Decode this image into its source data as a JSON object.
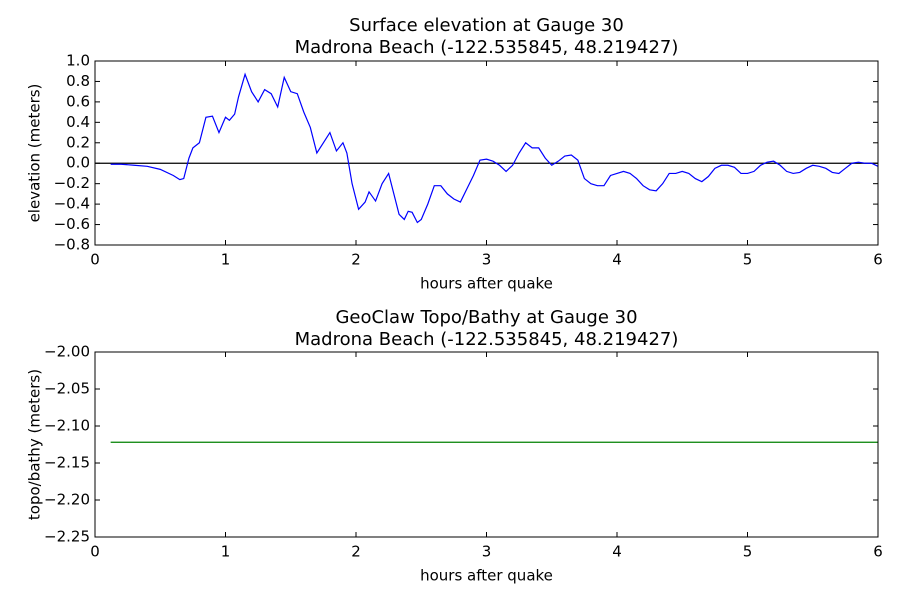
{
  "chart_data": [
    {
      "type": "line",
      "title": "Surface elevation at Gauge 30",
      "subtitle": "Madrona Beach  (-122.535845, 48.219427)",
      "xlabel": "hours after quake",
      "ylabel": "elevation (meters)",
      "xlim": [
        0,
        6
      ],
      "ylim": [
        -0.8,
        1.0
      ],
      "xticks": [
        0,
        1,
        2,
        3,
        4,
        5,
        6
      ],
      "yticks": [
        {
          "value": -0.8,
          "label": "−0.8"
        },
        {
          "value": -0.6,
          "label": "−0.6"
        },
        {
          "value": -0.4,
          "label": "−0.4"
        },
        {
          "value": -0.2,
          "label": "−0.2"
        },
        {
          "value": 0,
          "label": "0.0"
        },
        {
          "value": 0.2,
          "label": "0.2"
        },
        {
          "value": 0.4,
          "label": "0.4"
        },
        {
          "value": 0.6,
          "label": "0.6"
        },
        {
          "value": 0.8,
          "label": "0.8"
        },
        {
          "value": 1,
          "label": "1.0"
        }
      ],
      "hline": 0,
      "hline_color": "#000000",
      "x": [
        0.12,
        0.2,
        0.3,
        0.4,
        0.5,
        0.6,
        0.65,
        0.68,
        0.72,
        0.75,
        0.8,
        0.85,
        0.9,
        0.95,
        1.0,
        1.03,
        1.07,
        1.1,
        1.15,
        1.2,
        1.25,
        1.3,
        1.35,
        1.4,
        1.45,
        1.5,
        1.55,
        1.6,
        1.65,
        1.7,
        1.75,
        1.8,
        1.85,
        1.9,
        1.93,
        1.97,
        2.02,
        2.07,
        2.1,
        2.15,
        2.2,
        2.25,
        2.3,
        2.33,
        2.37,
        2.4,
        2.43,
        2.47,
        2.5,
        2.55,
        2.6,
        2.65,
        2.7,
        2.75,
        2.8,
        2.85,
        2.9,
        2.95,
        3.0,
        3.05,
        3.1,
        3.15,
        3.2,
        3.25,
        3.3,
        3.35,
        3.4,
        3.45,
        3.5,
        3.55,
        3.6,
        3.65,
        3.7,
        3.75,
        3.8,
        3.85,
        3.9,
        3.95,
        4.0,
        4.05,
        4.1,
        4.15,
        4.2,
        4.25,
        4.3,
        4.35,
        4.4,
        4.45,
        4.5,
        4.55,
        4.6,
        4.65,
        4.7,
        4.75,
        4.8,
        4.85,
        4.9,
        4.95,
        5.0,
        5.05,
        5.1,
        5.15,
        5.2,
        5.25,
        5.3,
        5.35,
        5.4,
        5.45,
        5.5,
        5.55,
        5.6,
        5.65,
        5.7,
        5.75,
        5.8,
        5.85,
        5.9,
        5.95,
        6.0
      ],
      "series": [
        {
          "color": "#0000ff",
          "values": [
            -0.01,
            -0.01,
            -0.02,
            -0.03,
            -0.06,
            -0.12,
            -0.16,
            -0.15,
            0.05,
            0.15,
            0.2,
            0.45,
            0.46,
            0.3,
            0.45,
            0.42,
            0.48,
            0.65,
            0.87,
            0.7,
            0.6,
            0.72,
            0.68,
            0.55,
            0.84,
            0.7,
            0.68,
            0.5,
            0.35,
            0.1,
            0.2,
            0.3,
            0.12,
            0.2,
            0.1,
            -0.2,
            -0.45,
            -0.38,
            -0.28,
            -0.37,
            -0.2,
            -0.1,
            -0.35,
            -0.5,
            -0.55,
            -0.47,
            -0.48,
            -0.58,
            -0.55,
            -0.4,
            -0.22,
            -0.22,
            -0.3,
            -0.35,
            -0.38,
            -0.25,
            -0.12,
            0.03,
            0.04,
            0.02,
            -0.02,
            -0.08,
            -0.02,
            0.1,
            0.2,
            0.15,
            0.15,
            0.05,
            -0.02,
            0.02,
            0.07,
            0.08,
            0.03,
            -0.15,
            -0.2,
            -0.22,
            -0.22,
            -0.12,
            -0.1,
            -0.08,
            -0.1,
            -0.15,
            -0.22,
            -0.26,
            -0.27,
            -0.2,
            -0.1,
            -0.1,
            -0.08,
            -0.1,
            -0.15,
            -0.18,
            -0.13,
            -0.05,
            -0.02,
            -0.02,
            -0.04,
            -0.1,
            -0.1,
            -0.08,
            -0.02,
            0.01,
            0.02,
            -0.02,
            -0.08,
            -0.1,
            -0.09,
            -0.05,
            -0.02,
            -0.03,
            -0.05,
            -0.09,
            -0.1,
            -0.05,
            0.0,
            0.01,
            0.0,
            0.0,
            -0.03
          ]
        }
      ]
    },
    {
      "type": "line",
      "title": "GeoClaw Topo/Bathy at Gauge 30",
      "subtitle": "Madrona Beach  (-122.535845, 48.219427)",
      "xlabel": "hours after quake",
      "ylabel": "topo/bathy (meters)",
      "xlim": [
        0,
        6
      ],
      "ylim": [
        -2.25,
        -2.0
      ],
      "xticks": [
        0,
        1,
        2,
        3,
        4,
        5,
        6
      ],
      "yticks": [
        {
          "value": -2.25,
          "label": "−2.25"
        },
        {
          "value": -2.2,
          "label": "−2.20"
        },
        {
          "value": -2.15,
          "label": "−2.15"
        },
        {
          "value": -2.1,
          "label": "−2.10"
        },
        {
          "value": -2.05,
          "label": "−2.05"
        },
        {
          "value": -2.0,
          "label": "−2.00"
        }
      ],
      "x": [
        0.12,
        6.0
      ],
      "series": [
        {
          "color": "#008000",
          "values": [
            -2.122,
            -2.122
          ]
        }
      ]
    }
  ]
}
